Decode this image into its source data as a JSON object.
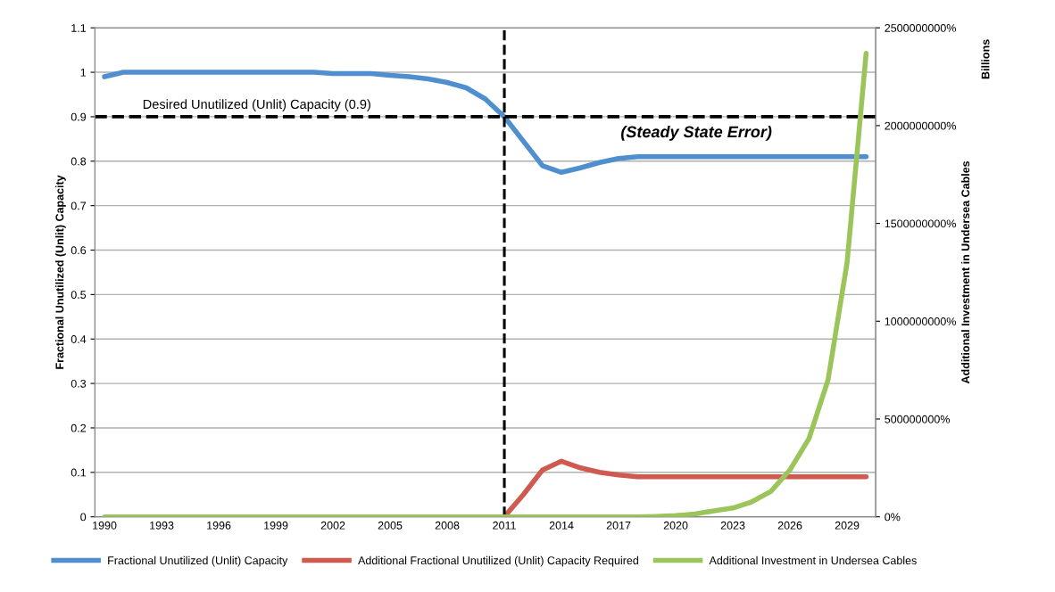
{
  "chart_data": {
    "type": "line",
    "categories": [
      "1990",
      null,
      null,
      "1993",
      null,
      null,
      "1996",
      null,
      null,
      "1999",
      null,
      null,
      "2002",
      null,
      null,
      "2005",
      null,
      null,
      "2008",
      null,
      null,
      "2011",
      null,
      null,
      "2014",
      null,
      null,
      "2017",
      null,
      null,
      "2020",
      null,
      null,
      "2023",
      null,
      null,
      "2026",
      null,
      null,
      "2029",
      null
    ],
    "series": [
      {
        "name": "Fractional Unutilized (Unlit) Capacity",
        "color": "#4f8fd0",
        "values": [
          0.99,
          1.0,
          1.0,
          1.0,
          1.0,
          1.0,
          1.0,
          1.0,
          1.0,
          1.0,
          1.0,
          1.0,
          0.997,
          0.997,
          0.997,
          0.993,
          0.99,
          0.985,
          0.977,
          0.965,
          0.94,
          0.9,
          0.845,
          0.79,
          0.775,
          0.785,
          0.797,
          0.806,
          0.81,
          0.81,
          0.81,
          0.81,
          0.81,
          0.81,
          0.81,
          0.81,
          0.81,
          0.81,
          0.81,
          0.81,
          0.81
        ]
      },
      {
        "name": "Additional Fractional Unutilized (Unlit) Capacity Required",
        "color": "#cf5a4f",
        "values": [
          null,
          null,
          null,
          null,
          null,
          null,
          null,
          null,
          null,
          null,
          null,
          null,
          null,
          null,
          null,
          null,
          null,
          null,
          null,
          null,
          null,
          0,
          0.05,
          0.105,
          0.125,
          0.11,
          0.1,
          0.094,
          0.09,
          0.09,
          0.09,
          0.09,
          0.09,
          0.09,
          0.09,
          0.09,
          0.09,
          0.09,
          0.09,
          0.09,
          0.09
        ]
      },
      {
        "name": "Additional Investment in Undersea Cables",
        "color": "#9bc55a",
        "axis": "y2",
        "values": [
          0,
          0,
          0,
          0,
          0,
          0,
          0,
          0,
          0,
          0,
          0,
          0,
          0,
          0,
          0,
          0,
          0,
          0,
          0,
          0,
          0,
          0,
          0,
          0,
          0,
          0,
          0,
          0,
          0,
          2000000,
          6000000,
          14000000,
          30000000,
          45000000,
          77000000,
          130000000,
          240000000,
          400000000,
          700000000,
          1300000000,
          2370000000
        ]
      }
    ],
    "ylabel": "Fractional Unutilized (Unlit) Capacity",
    "y2label": "Additional Investment in Undersea Cables",
    "ylim": [
      0,
      1.1
    ],
    "yticks": [
      0,
      0.1,
      0.2,
      0.3,
      0.4,
      0.5,
      0.6,
      0.7,
      0.8,
      0.9,
      1,
      1.1
    ],
    "y2lim": [
      0,
      2500000000
    ],
    "y2ticks": [
      {
        "value": 0,
        "label": "0%"
      },
      {
        "value": 500000000,
        "label": "500000000%"
      },
      {
        "value": 1000000000,
        "label": "1000000000%"
      },
      {
        "value": 1500000000,
        "label": "1500000000%"
      },
      {
        "value": 2000000000,
        "label": "2000000000%"
      },
      {
        "value": 2500000000,
        "label": "2500000000%"
      }
    ],
    "ref_lines": [
      {
        "axis": "y",
        "value": 0.9,
        "label": "Desired Unutilized (Unlit) Capacity (0.9)",
        "color": "#000000",
        "line_style": "dashed"
      },
      {
        "axis": "x",
        "value": "2011",
        "label": null,
        "color": "#000000",
        "line_style": "dashed"
      }
    ],
    "annotations": [
      "(Steady State Error)",
      "Billions"
    ],
    "grid": "y",
    "legend": "bottom",
    "marker": "none",
    "line_style": "solid"
  }
}
